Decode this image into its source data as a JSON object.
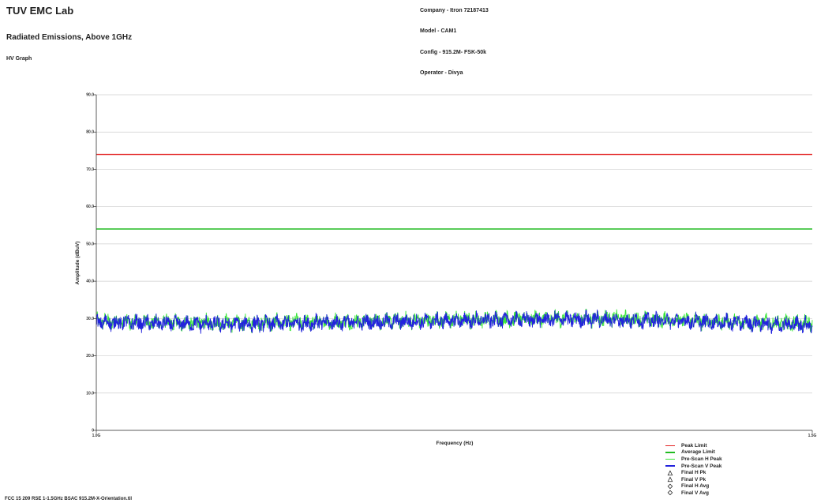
{
  "header": {
    "lab_title": "TUV EMC Lab",
    "report_title": "Radiated Emissions, Above 1GHz",
    "graph_name": "HV Graph",
    "company": "Company - Itron 72187413",
    "model": "Model - CAM1",
    "config": "Config - 915.2M- FSK-50k",
    "operator": "Operator - Divya"
  },
  "footer": {
    "filename": "FCC 15 209 RSE 1-1.5GHz BSAC 915.2M-X-Orientation.til"
  },
  "chart_data": {
    "type": "line",
    "xlabel": "Frequency (Hz)",
    "ylabel": "Amplitude (dBuV)",
    "x_tick_labels": [
      "1.0G",
      "1.5G"
    ],
    "y_tick_labels": [
      "0",
      "10.0",
      "20.0",
      "30.0",
      "40.0",
      "50.0",
      "60.0",
      "70.0",
      "80.0",
      "90.0"
    ],
    "ylim": [
      0,
      90
    ],
    "xlim_ghz": [
      1.0,
      1.5
    ],
    "grid": true,
    "legend_position": "bottom-right",
    "series": [
      {
        "name": "Peak Limit",
        "kind": "constant",
        "value": 74,
        "color": "#e32222"
      },
      {
        "name": "Average Limit",
        "kind": "constant",
        "value": 54,
        "color": "#22bb22"
      },
      {
        "name": "Pre-Scan H Peak",
        "kind": "trace",
        "mean_profile_ghz": [
          [
            1.0,
            29.2
          ],
          [
            1.05,
            28.9
          ],
          [
            1.1,
            28.8
          ],
          [
            1.15,
            29.0
          ],
          [
            1.2,
            29.3
          ],
          [
            1.25,
            29.6
          ],
          [
            1.3,
            29.9
          ],
          [
            1.35,
            30.0
          ],
          [
            1.4,
            29.6
          ],
          [
            1.45,
            29.0
          ],
          [
            1.5,
            28.6
          ]
        ],
        "color": "#39e639"
      },
      {
        "name": "Pre-Scan V Peak",
        "kind": "trace",
        "mean_profile_ghz": [
          [
            1.0,
            29.0
          ],
          [
            1.05,
            28.6
          ],
          [
            1.1,
            28.5
          ],
          [
            1.15,
            28.8
          ],
          [
            1.2,
            29.1
          ],
          [
            1.25,
            29.4
          ],
          [
            1.3,
            29.7
          ],
          [
            1.35,
            29.8
          ],
          [
            1.4,
            29.4
          ],
          [
            1.45,
            28.8
          ],
          [
            1.5,
            28.3
          ]
        ],
        "color": "#2222dd"
      },
      {
        "name": "Final H Pk",
        "kind": "marker",
        "symbol": "△"
      },
      {
        "name": "Final V Pk",
        "kind": "marker",
        "symbol": "△"
      },
      {
        "name": "Final H Avg",
        "kind": "marker",
        "symbol": "◇"
      },
      {
        "name": "Final V Avg",
        "kind": "marker",
        "symbol": "◇"
      }
    ]
  }
}
